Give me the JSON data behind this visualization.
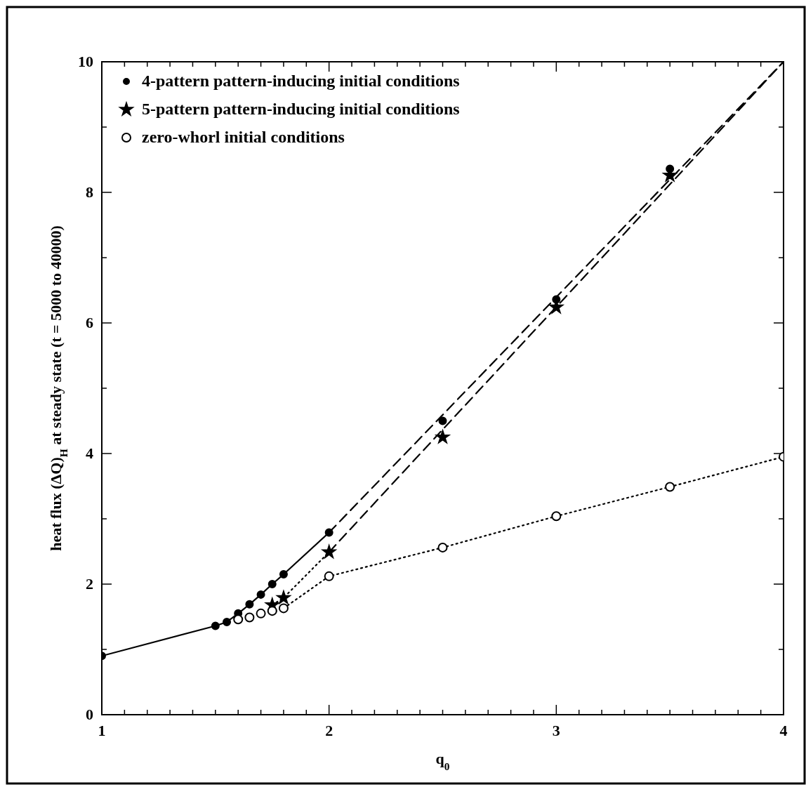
{
  "chart_data": {
    "type": "scatter",
    "xlabel": "q$_{0}$",
    "ylabel": "heat flux (ΔQ)$_{H}$ at steady state (t = 5000 to 40000)",
    "xlim": [
      1,
      4
    ],
    "ylim": [
      0,
      10
    ],
    "xticks": [
      1,
      {
        "value": 1.1,
        "label": null
      },
      {
        "value": 1.2,
        "label": null
      },
      {
        "value": 1.3,
        "label": null
      },
      {
        "value": 1.4,
        "label": null
      },
      {
        "value": 1.5,
        "label": null
      },
      {
        "value": 1.6,
        "label": null
      },
      {
        "value": 1.7,
        "label": null
      },
      {
        "value": 1.8,
        "label": null
      },
      {
        "value": 1.9,
        "label": null
      },
      2,
      {
        "value": 2.1,
        "label": null
      },
      {
        "value": 2.2,
        "label": null
      },
      {
        "value": 2.3,
        "label": null
      },
      {
        "value": 2.4,
        "label": null
      },
      {
        "value": 2.5,
        "label": null
      },
      {
        "value": 2.6,
        "label": null
      },
      {
        "value": 2.7,
        "label": null
      },
      {
        "value": 2.8,
        "label": null
      },
      {
        "value": 2.9,
        "label": null
      },
      3,
      {
        "value": 3.1,
        "label": null
      },
      {
        "value": 3.2,
        "label": null
      },
      {
        "value": 3.3,
        "label": null
      },
      {
        "value": 3.4,
        "label": null
      },
      {
        "value": 3.5,
        "label": null
      },
      {
        "value": 3.6,
        "label": null
      },
      {
        "value": 3.7,
        "label": null
      },
      {
        "value": 3.8,
        "label": null
      },
      {
        "value": 3.9,
        "label": null
      },
      4
    ],
    "yticks": [
      0,
      {
        "value": 1,
        "label": null
      },
      2,
      {
        "value": 3,
        "label": null
      },
      4,
      {
        "value": 5,
        "label": null
      },
      6,
      {
        "value": 7,
        "label": null
      },
      8,
      {
        "value": 9,
        "label": null
      },
      10
    ],
    "grid": false,
    "legend": "top left",
    "series": [
      {
        "type": "line",
        "line_style": "solid",
        "marker": "none",
        "color": "#000000",
        "x": [
          1,
          1.5,
          1.55,
          1.6,
          1.65,
          1.7,
          1.75,
          1.8,
          2
        ],
        "values": [
          0.9,
          1.36,
          1.42,
          1.55,
          1.69,
          1.84,
          2.0,
          2.15,
          2.79
        ]
      },
      {
        "type": "line",
        "line_style": "dashed",
        "marker": "none",
        "color": "#000000",
        "x": [
          2,
          4
        ],
        "values": [
          2.79,
          10
        ]
      },
      {
        "type": "line",
        "line_style": "dotted",
        "marker": "none",
        "color": "#000000",
        "x": [
          1.75,
          1.8,
          2
        ],
        "values": [
          1.68,
          1.79,
          2.49
        ]
      },
      {
        "type": "line",
        "line_style": "dashed",
        "marker": "none",
        "color": "#000000",
        "x": [
          2,
          4
        ],
        "values": [
          2.49,
          10
        ]
      },
      {
        "type": "line",
        "line_style": "dotted",
        "marker": "none",
        "color": "#000000",
        "x": [
          1.8,
          2,
          2.5,
          3,
          3.5,
          4
        ],
        "values": [
          1.63,
          2.12,
          2.56,
          3.04,
          3.49,
          3.95
        ]
      },
      {
        "name": "4-pattern pattern-inducing initial conditions",
        "marker": "circle",
        "color": "#000000",
        "x": [
          1,
          1.5,
          1.55,
          1.6,
          1.65,
          1.7,
          1.75,
          1.8,
          2,
          2.5,
          3,
          3.5
        ],
        "values": [
          0.9,
          1.36,
          1.42,
          1.55,
          1.69,
          1.84,
          2.0,
          2.15,
          2.79,
          4.5,
          6.36,
          8.36
        ]
      },
      {
        "name": "5-pattern pattern-inducing initial conditions",
        "marker": "star",
        "color": "#000000",
        "x": [
          1.75,
          1.8,
          2,
          2.5,
          3,
          3.5
        ],
        "values": [
          1.68,
          1.79,
          2.49,
          4.25,
          6.24,
          8.26
        ]
      },
      {
        "name": "zero-whorl initial conditions",
        "marker": "circle",
        "color": "#ffffff",
        "x": [
          1.6,
          1.65,
          1.7,
          1.75,
          1.8,
          2,
          2.5,
          3,
          3.5,
          4
        ],
        "values": [
          1.46,
          1.49,
          1.55,
          1.59,
          1.63,
          2.12,
          2.56,
          3.04,
          3.49,
          3.95
        ]
      }
    ]
  }
}
